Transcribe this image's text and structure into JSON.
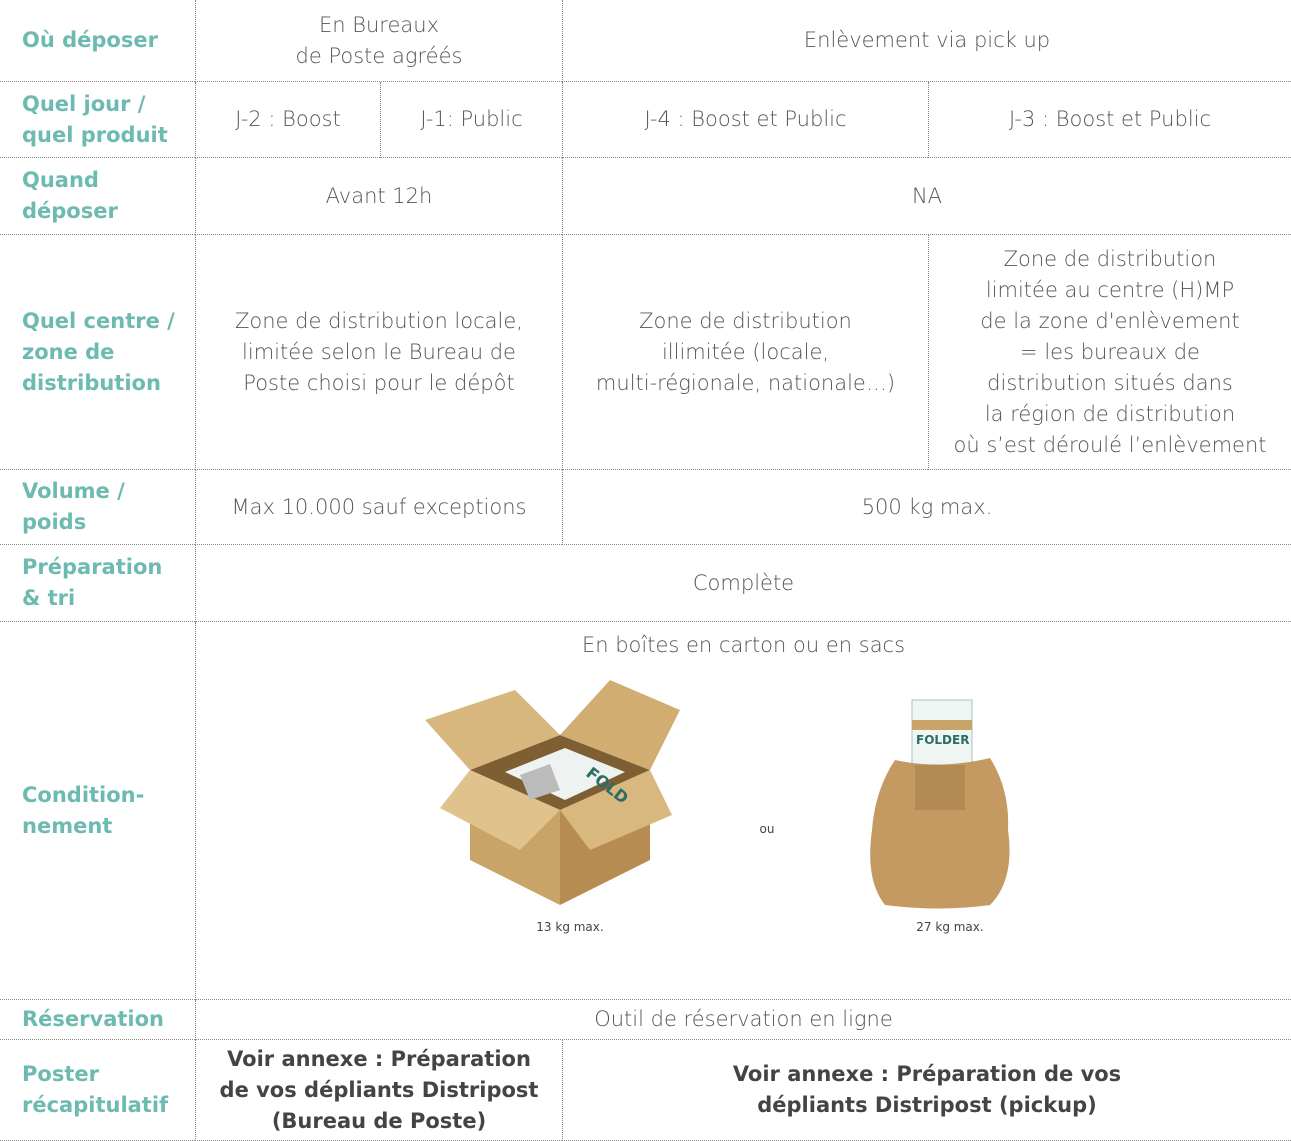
{
  "table": {
    "rows": [
      {
        "header": [
          "Où déposer"
        ],
        "cells": [
          [
            "En Bureaux",
            "de Poste agréés"
          ],
          [
            "Enlèvement via pick up"
          ]
        ]
      },
      {
        "header": [
          "Quel jour /",
          "quel produit"
        ],
        "cells": [
          [
            "J-2 : Boost"
          ],
          [
            "J-1: Public"
          ],
          [
            "J-4 : Boost et Public"
          ],
          [
            "J-3 : Boost et Public"
          ]
        ]
      },
      {
        "header": [
          "Quand",
          "déposer"
        ],
        "cells": [
          [
            "Avant 12h"
          ],
          [
            "NA"
          ]
        ]
      },
      {
        "header": [
          "Quel centre /",
          "zone de",
          "distribution"
        ],
        "cells": [
          [
            "Zone de distribution locale,",
            "limitée selon le Bureau de",
            "Poste choisi pour le dépôt"
          ],
          [
            "Zone de distribution",
            "illimitée (locale,",
            "multi-régionale, nationale…)"
          ],
          [
            "Zone de distribution",
            "limitée au centre (H)MP",
            "de la zone d'enlèvement",
            "= les bureaux de",
            "distribution situés dans",
            "la région de distribution",
            "où s’est déroulé l’enlèvement"
          ]
        ]
      },
      {
        "header": [
          "Volume /",
          "poids"
        ],
        "cells": [
          [
            "Max 10.000 sauf exceptions"
          ],
          [
            "500 kg max."
          ]
        ]
      },
      {
        "header": [
          "Préparation",
          "& tri"
        ],
        "cells": [
          [
            "Complète"
          ]
        ]
      },
      {
        "header": [
          "Condition-",
          "nement"
        ],
        "cells": [
          [
            "En boîtes en carton ou en sacs"
          ]
        ]
      },
      {
        "header": [
          "Réservation"
        ],
        "cells": [
          [
            "Outil de réservation en ligne"
          ]
        ]
      },
      {
        "header": [
          "Poster",
          "récapitulatif"
        ],
        "cells": [
          [
            "Voir annexe : Préparation",
            "de vos dépliants Distripost",
            "(Bureau de Poste)"
          ],
          [
            "Voir annexe : Préparation de vos",
            "dépliants Distripost (pickup)"
          ]
        ]
      }
    ],
    "illustrations": {
      "box_text": "FOLD",
      "bag_text": "FOLDER",
      "box_label": "13 kg max.",
      "or": "ou",
      "bag_label": "27 kg max."
    }
  }
}
